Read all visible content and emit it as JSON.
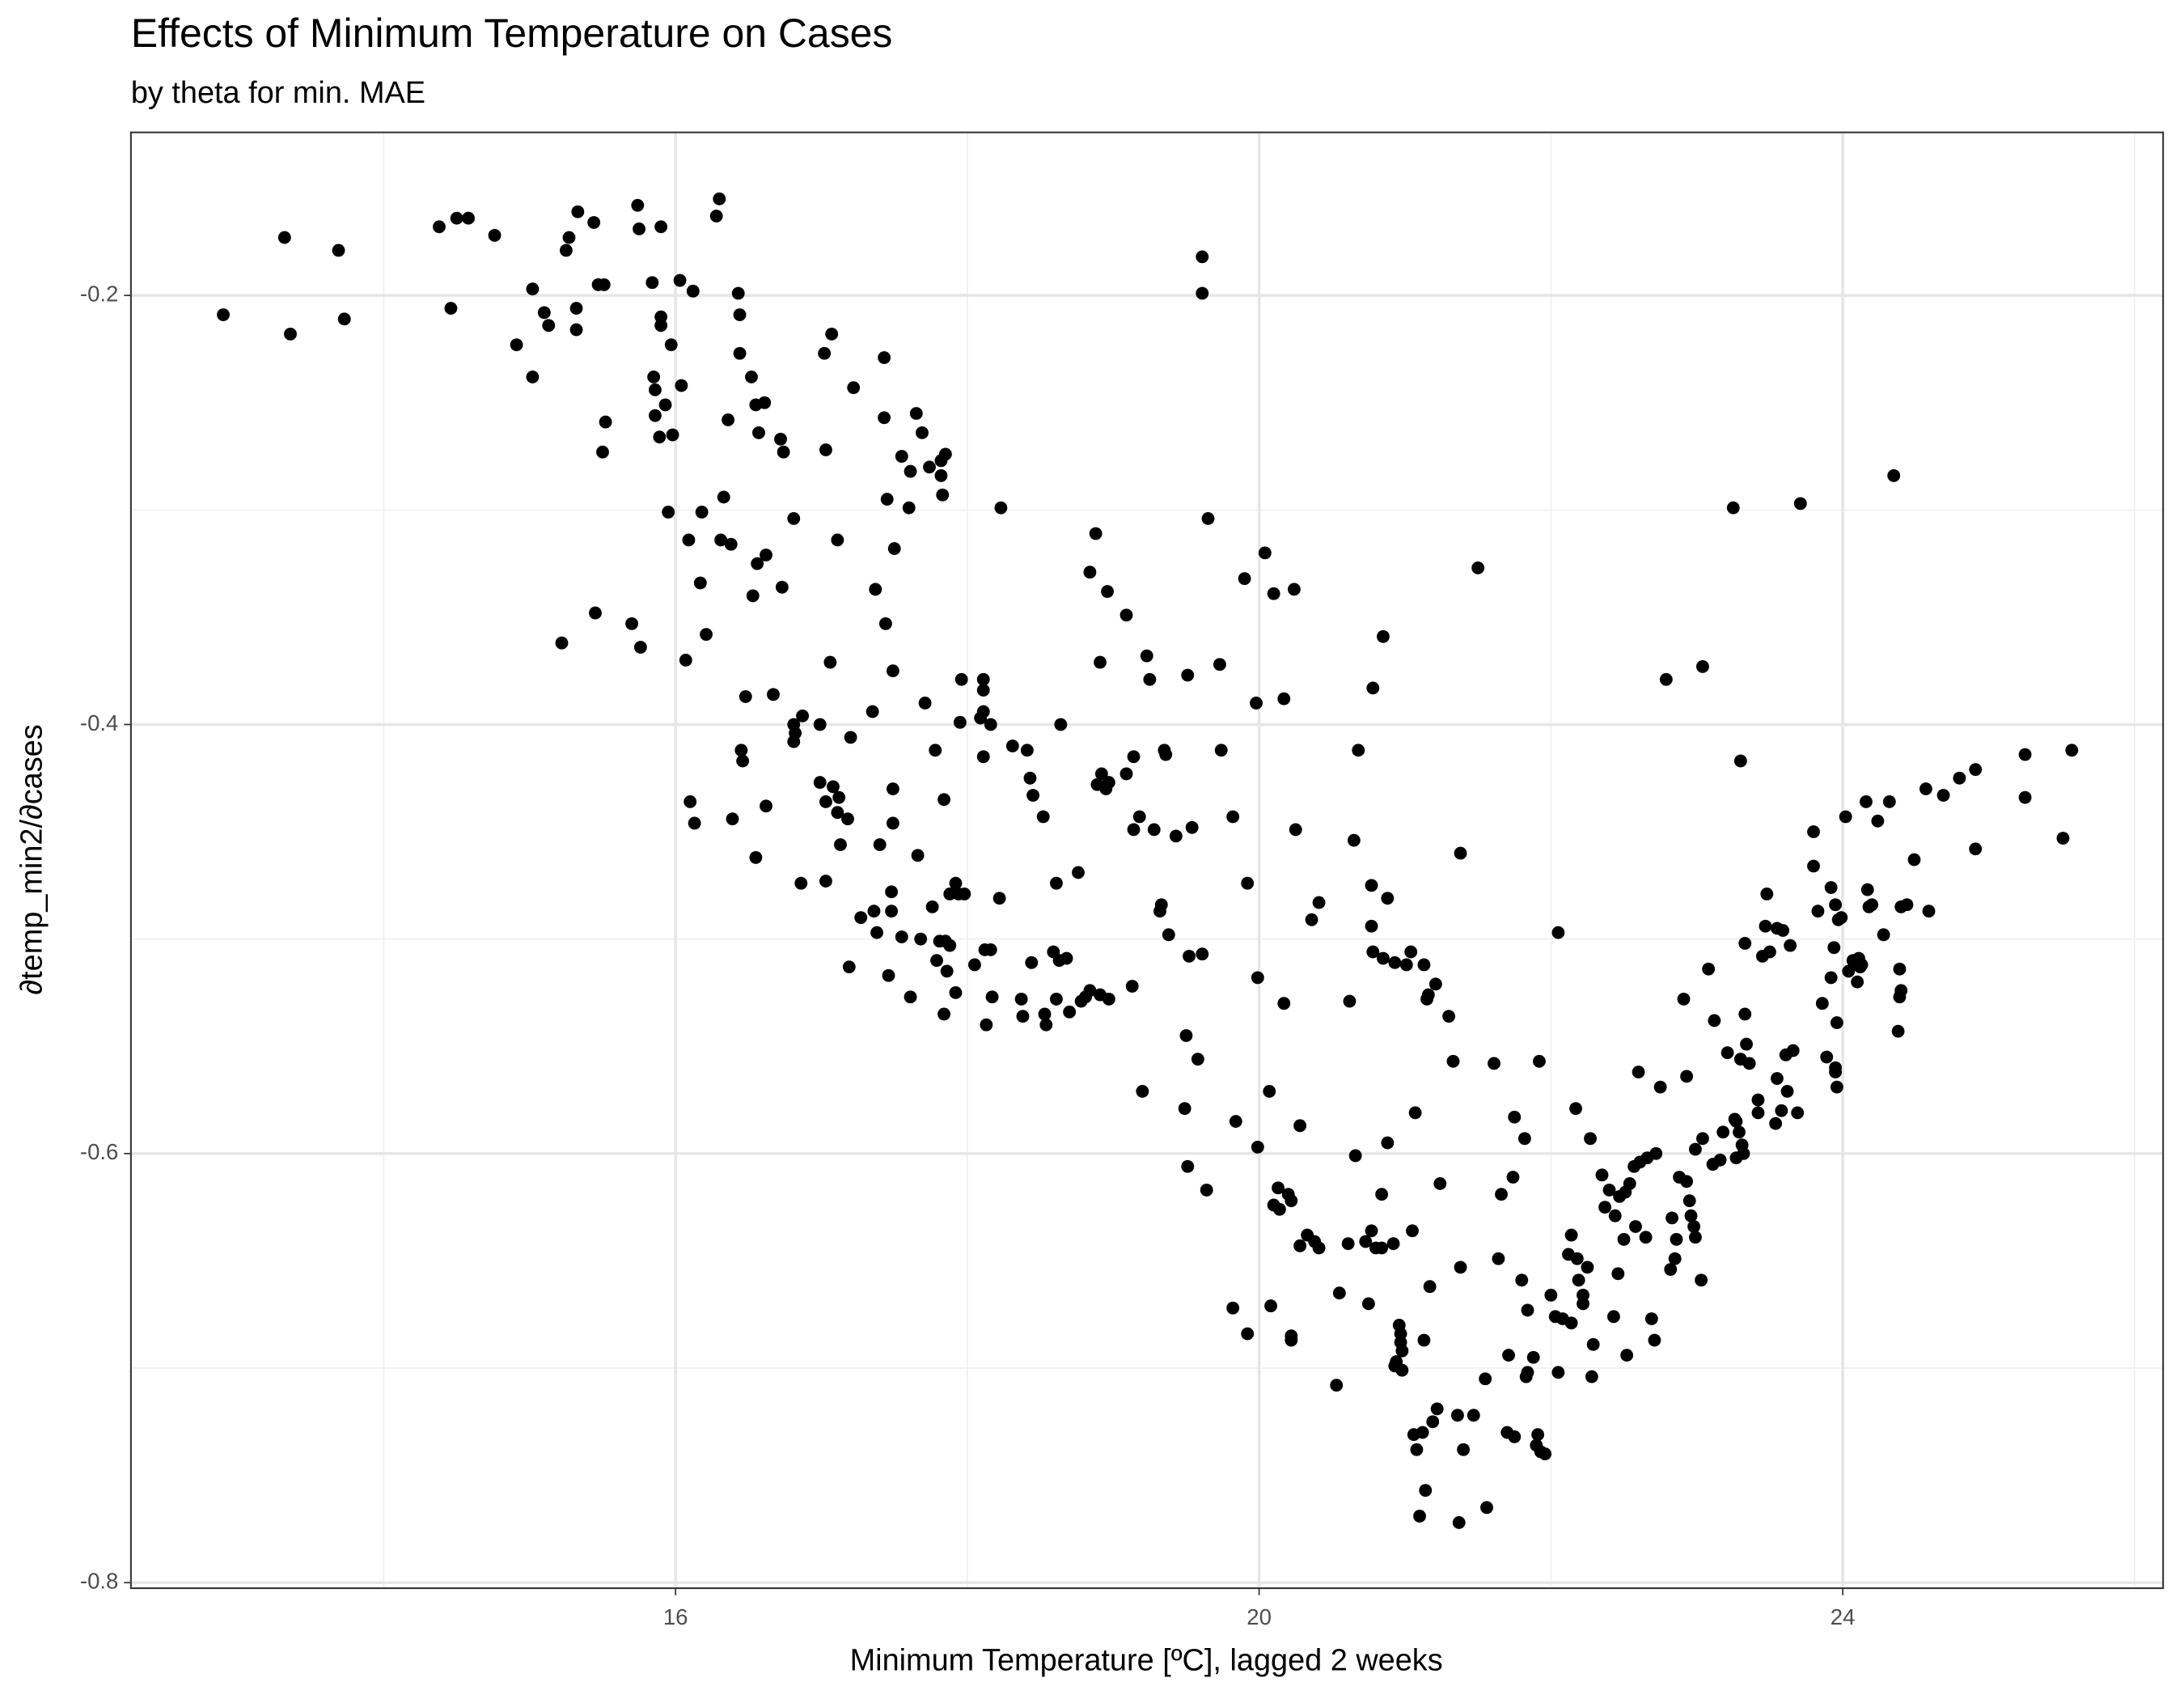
{
  "chart_data": {
    "type": "scatter",
    "title": "Effects of Minimum Temperature on Cases",
    "subtitle": "by theta for min. MAE",
    "x_label": "Minimum Temperature [ºC], lagged 2 weeks",
    "y_label": "∂temp_min2/∂cases",
    "color": "#000000",
    "grid": true,
    "xlim": [
      12.267,
      26.196
    ],
    "xticks": [
      16,
      20,
      24
    ],
    "x_minor_grid": [
      14,
      18,
      22,
      26
    ],
    "ylim": [
      -0.8026,
      -0.124
    ],
    "yticks": [
      -0.2,
      -0.4,
      -0.6,
      -0.8
    ],
    "y_minor_grid": [
      -0.3,
      -0.5,
      -0.7
    ],
    "x": [
      12.9,
      13.32,
      13.36,
      13.69,
      13.73,
      14.38,
      14.46,
      14.5,
      14.58,
      14.76,
      14.91,
      15.02,
      15.02,
      15.1,
      15.13,
      15.22,
      15.25,
      15.27,
      15.32,
      15.32,
      15.33,
      15.44,
      15.45,
      15.47,
      15.5,
      15.52,
      15.51,
      15.7,
      15.74,
      15.75,
      15.76,
      15.84,
      15.85,
      15.86,
      15.86,
      15.89,
      15.9,
      15.9,
      15.9,
      15.93,
      15.95,
      15.97,
      15.98,
      16.03,
      16.04,
      16.07,
      16.09,
      16.1,
      16.12,
      16.13,
      16.17,
      16.18,
      16.21,
      16.28,
      16.3,
      16.31,
      16.33,
      16.36,
      16.38,
      16.39,
      16.43,
      16.44,
      16.44,
      16.45,
      16.46,
      16.48,
      16.52,
      16.53,
      16.55,
      16.55,
      16.56,
      16.57,
      16.61,
      16.62,
      16.62,
      16.67,
      16.72,
      16.73,
      16.74,
      16.81,
      16.81,
      16.81,
      16.82,
      16.86,
      16.87,
      16.99,
      16.99,
      17.02,
      17.03,
      17.03,
      17.03,
      17.06,
      17.07,
      17.08,
      17.11,
      17.11,
      17.12,
      17.13,
      17.18,
      17.19,
      17.2,
      17.22,
      17.27,
      17.35,
      17.36,
      17.37,
      17.38,
      17.4,
      17.43,
      17.43,
      17.44,
      17.45,
      17.46,
      17.48,
      17.48,
      17.49,
      17.49,
      17.5,
      17.49,
      17.55,
      17.55,
      17.6,
      17.61,
      17.61,
      17.65,
      17.66,
      17.69,
      17.68,
      17.71,
      17.74,
      17.76,
      17.78,
      17.79,
      17.81,
      17.82,
      17.82,
      17.84,
      17.83,
      17.84,
      17.85,
      17.85,
      17.86,
      17.88,
      17.88,
      17.92,
      17.92,
      17.94,
      17.95,
      17.96,
      17.98,
      18.05,
      18.09,
      18.11,
      18.11,
      18.11,
      18.11,
      18.12,
      18.13,
      18.16,
      18.16,
      18.17,
      18.22,
      18.23,
      18.31,
      18.37,
      18.38,
      18.41,
      18.43,
      18.44,
      18.45,
      18.52,
      18.53,
      18.54,
      18.59,
      18.61,
      18.61,
      18.63,
      18.64,
      18.68,
      18.7,
      18.76,
      18.78,
      18.81,
      18.84,
      18.84,
      18.88,
      18.89,
      18.91,
      18.91,
      18.92,
      18.95,
      18.96,
      18.97,
      18.97,
      19.09,
      19.09,
      19.13,
      19.14,
      19.14,
      19.18,
      19.2,
      19.23,
      19.25,
      19.28,
      19.32,
      19.33,
      19.35,
      19.36,
      19.38,
      19.43,
      19.49,
      19.5,
      19.51,
      19.52,
      19.51,
      19.54,
      19.58,
      19.61,
      19.61,
      19.61,
      19.64,
      19.65,
      19.73,
      19.74,
      19.82,
      19.82,
      19.84,
      19.9,
      19.92,
      19.92,
      19.98,
      19.99,
      19.99,
      20.04,
      20.07,
      20.08,
      20.1,
      20.1,
      20.13,
      20.14,
      20.17,
      20.17,
      20.2,
      20.22,
      20.22,
      20.22,
      20.24,
      20.25,
      20.28,
      20.28,
      20.33,
      20.36,
      20.38,
      20.41,
      20.41,
      20.53,
      20.55,
      20.61,
      20.62,
      20.65,
      20.66,
      20.68,
      20.73,
      20.75,
      20.77,
      20.77,
      20.77,
      20.78,
      20.78,
      20.8,
      20.84,
      20.84,
      20.85,
      20.85,
      20.88,
      20.88,
      20.92,
      20.93,
      20.93,
      20.94,
      20.96,
      20.97,
      20.97,
      20.98,
      20.98,
      21.01,
      21.04,
      21.05,
      21.06,
      21.07,
      21.08,
      21.1,
      21.12,
      21.13,
      21.13,
      21.14,
      21.15,
      21.16,
      21.17,
      21.19,
      21.21,
      21.22,
      21.24,
      21.3,
      21.33,
      21.36,
      21.37,
      21.38,
      21.38,
      21.4,
      21.47,
      21.5,
      21.55,
      21.56,
      21.61,
      21.64,
      21.66,
      21.7,
      21.71,
      21.74,
      21.75,
      21.75,
      21.8,
      21.82,
      21.83,
      21.84,
      21.84,
      21.88,
      21.9,
      21.91,
      21.92,
      21.93,
      21.96,
      22.0,
      22.03,
      22.05,
      22.05,
      22.08,
      22.12,
      22.14,
      22.14,
      22.17,
      22.18,
      22.19,
      22.22,
      22.22,
      22.25,
      22.27,
      22.28,
      22.29,
      22.35,
      22.37,
      22.4,
      22.43,
      22.44,
      22.46,
      22.47,
      22.5,
      22.51,
      22.52,
      22.54,
      22.57,
      22.58,
      22.6,
      22.61,
      22.65,
      22.66,
      22.69,
      22.71,
      22.72,
      22.75,
      22.79,
      22.82,
      22.83,
      22.85,
      22.86,
      22.88,
      22.91,
      22.93,
      22.93,
      22.95,
      22.96,
      22.98,
      22.99,
      22.99,
      23.03,
      23.04,
      23.04,
      23.08,
      23.11,
      23.12,
      23.16,
      23.18,
      23.21,
      23.25,
      23.26,
      23.27,
      23.27,
      23.29,
      23.3,
      23.3,
      23.31,
      23.32,
      23.33,
      23.33,
      23.34,
      23.36,
      23.42,
      23.42,
      23.45,
      23.47,
      23.48,
      23.5,
      23.54,
      23.55,
      23.55,
      23.58,
      23.59,
      23.61,
      23.62,
      23.64,
      23.66,
      23.69,
      23.71,
      23.8,
      23.8,
      23.83,
      23.86,
      23.89,
      23.92,
      23.92,
      23.94,
      23.95,
      23.95,
      23.95,
      23.96,
      23.96,
      23.97,
      23.99,
      24.02,
      24.04,
      24.07,
      24.08,
      24.1,
      24.11,
      24.12,
      24.13,
      24.16,
      24.17,
      24.18,
      24.2,
      24.24,
      24.28,
      24.32,
      24.35,
      24.38,
      24.39,
      24.39,
      24.4,
      24.4,
      24.44,
      24.49,
      24.57,
      24.59,
      24.69,
      24.8,
      24.91,
      24.91,
      25.25,
      25.25,
      25.51,
      25.57
    ],
    "y": [
      -0.209,
      -0.173,
      -0.218,
      -0.179,
      -0.211,
      -0.168,
      -0.206,
      -0.164,
      -0.164,
      -0.172,
      -0.223,
      -0.238,
      -0.197,
      -0.208,
      -0.214,
      -0.362,
      -0.179,
      -0.173,
      -0.216,
      -0.206,
      -0.161,
      -0.166,
      -0.348,
      -0.195,
      -0.273,
      -0.259,
      -0.195,
      -0.353,
      -0.158,
      -0.169,
      -0.364,
      -0.194,
      -0.238,
      -0.244,
      -0.256,
      -0.266,
      -0.168,
      -0.214,
      -0.21,
      -0.251,
      -0.301,
      -0.223,
      -0.265,
      -0.193,
      -0.242,
      -0.37,
      -0.314,
      -0.436,
      -0.198,
      -0.446,
      -0.334,
      -0.301,
      -0.358,
      -0.163,
      -0.155,
      -0.314,
      -0.294,
      -0.258,
      -0.316,
      -0.444,
      -0.199,
      -0.209,
      -0.227,
      -0.412,
      -0.417,
      -0.387,
      -0.238,
      -0.34,
      -0.251,
      -0.462,
      -0.325,
      -0.264,
      -0.25,
      -0.321,
      -0.438,
      -0.386,
      -0.267,
      -0.336,
      -0.273,
      -0.304,
      -0.4,
      -0.408,
      -0.404,
      -0.474,
      -0.396,
      -0.4,
      -0.427,
      -0.227,
      -0.272,
      -0.473,
      -0.436,
      -0.371,
      -0.218,
      -0.429,
      -0.314,
      -0.441,
      -0.434,
      -0.456,
      -0.444,
      -0.513,
      -0.406,
      -0.243,
      -0.49,
      -0.394,
      -0.487,
      -0.337,
      -0.497,
      -0.456,
      -0.229,
      -0.257,
      -0.353,
      -0.295,
      -0.517,
      -0.478,
      -0.487,
      -0.375,
      -0.43,
      -0.318,
      -0.446,
      -0.275,
      -0.499,
      -0.299,
      -0.527,
      -0.282,
      -0.255,
      -0.461,
      -0.264,
      -0.5,
      -0.39,
      -0.28,
      -0.485,
      -0.412,
      -0.51,
      -0.501,
      -0.277,
      -0.284,
      -0.535,
      -0.293,
      -0.435,
      -0.274,
      -0.501,
      -0.515,
      -0.479,
      -0.503,
      -0.474,
      -0.525,
      -0.479,
      -0.399,
      -0.379,
      -0.479,
      -0.512,
      -0.397,
      -0.379,
      -0.384,
      -0.394,
      -0.415,
      -0.505,
      -0.54,
      -0.4,
      -0.505,
      -0.527,
      -0.481,
      -0.299,
      -0.41,
      -0.528,
      -0.536,
      -0.412,
      -0.425,
      -0.511,
      -0.433,
      -0.443,
      -0.535,
      -0.54,
      -0.506,
      -0.474,
      -0.528,
      -0.51,
      -0.4,
      -0.509,
      -0.534,
      -0.469,
      -0.529,
      -0.527,
      -0.329,
      -0.524,
      -0.311,
      -0.428,
      -0.526,
      -0.371,
      -0.423,
      -0.43,
      -0.338,
      -0.528,
      -0.427,
      -0.423,
      -0.349,
      -0.522,
      -0.415,
      -0.449,
      -0.443,
      -0.571,
      -0.368,
      -0.379,
      -0.449,
      -0.487,
      -0.484,
      -0.412,
      -0.414,
      -0.498,
      -0.452,
      -0.579,
      -0.545,
      -0.377,
      -0.508,
      -0.606,
      -0.448,
      -0.556,
      -0.182,
      -0.199,
      -0.507,
      -0.617,
      -0.304,
      -0.372,
      -0.412,
      -0.443,
      -0.672,
      -0.585,
      -0.332,
      -0.474,
      -0.684,
      -0.39,
      -0.518,
      -0.597,
      -0.32,
      -0.571,
      -0.671,
      -0.339,
      -0.624,
      -0.616,
      -0.626,
      -0.388,
      -0.53,
      -0.619,
      -0.685,
      -0.687,
      -0.622,
      -0.337,
      -0.449,
      -0.587,
      -0.643,
      -0.638,
      -0.491,
      -0.641,
      -0.483,
      -0.644,
      -0.708,
      -0.665,
      -0.642,
      -0.529,
      -0.454,
      -0.601,
      -0.412,
      -0.641,
      -0.67,
      -0.636,
      -0.475,
      -0.494,
      -0.383,
      -0.506,
      -0.644,
      -0.619,
      -0.644,
      -0.359,
      -0.509,
      -0.595,
      -0.481,
      -0.642,
      -0.699,
      -0.511,
      -0.697,
      -0.68,
      -0.684,
      -0.688,
      -0.701,
      -0.692,
      -0.512,
      -0.506,
      -0.636,
      -0.731,
      -0.581,
      -0.738,
      -0.769,
      -0.73,
      -0.687,
      -0.512,
      -0.757,
      -0.528,
      -0.526,
      -0.662,
      -0.725,
      -0.521,
      -0.719,
      -0.614,
      -0.536,
      -0.557,
      -0.722,
      -0.772,
      -0.653,
      -0.46,
      -0.738,
      -0.722,
      -0.327,
      -0.705,
      -0.765,
      -0.558,
      -0.649,
      -0.619,
      -0.73,
      -0.694,
      -0.611,
      -0.583,
      -0.732,
      -0.659,
      -0.593,
      -0.704,
      -0.673,
      -0.702,
      -0.695,
      -0.736,
      -0.731,
      -0.557,
      -0.739,
      -0.74,
      -0.666,
      -0.676,
      -0.497,
      -0.702,
      -0.677,
      -0.647,
      -0.638,
      -0.679,
      -0.579,
      -0.649,
      -0.659,
      -0.666,
      -0.67,
      -0.653,
      -0.593,
      -0.704,
      -0.689,
      -0.61,
      -0.625,
      -0.617,
      -0.676,
      -0.629,
      -0.656,
      -0.62,
      -0.64,
      -0.618,
      -0.694,
      -0.614,
      -0.606,
      -0.634,
      -0.562,
      -0.604,
      -0.639,
      -0.602,
      -0.677,
      -0.687,
      -0.6,
      -0.569,
      -0.379,
      -0.654,
      -0.63,
      -0.649,
      -0.64,
      -0.611,
      -0.528,
      -0.564,
      -0.613,
      -0.622,
      -0.629,
      -0.634,
      -0.639,
      -0.598,
      -0.659,
      -0.373,
      -0.593,
      -0.514,
      -0.605,
      -0.538,
      -0.603,
      -0.59,
      -0.553,
      -0.299,
      -0.584,
      -0.602,
      -0.585,
      -0.59,
      -0.417,
      -0.556,
      -0.596,
      -0.6,
      -0.502,
      -0.535,
      -0.549,
      -0.558,
      -0.581,
      -0.575,
      -0.508,
      -0.494,
      -0.479,
      -0.506,
      -0.586,
      -0.495,
      -0.565,
      -0.58,
      -0.496,
      -0.554,
      -0.571,
      -0.503,
      -0.552,
      -0.581,
      -0.297,
      -0.45,
      -0.466,
      -0.487,
      -0.53,
      -0.555,
      -0.476,
      -0.518,
      -0.504,
      -0.56,
      -0.562,
      -0.484,
      -0.569,
      -0.539,
      -0.491,
      -0.49,
      -0.443,
      -0.515,
      -0.51,
      -0.511,
      -0.52,
      -0.509,
      -0.513,
      -0.512,
      -0.436,
      -0.477,
      -0.485,
      -0.484,
      -0.445,
      -0.498,
      -0.436,
      -0.284,
      -0.543,
      -0.514,
      -0.527,
      -0.485,
      -0.524,
      -0.484,
      -0.463,
      -0.43,
      -0.487,
      -0.433,
      -0.425,
      -0.421,
      -0.458,
      -0.414,
      -0.434,
      -0.453,
      -0.412
    ]
  }
}
